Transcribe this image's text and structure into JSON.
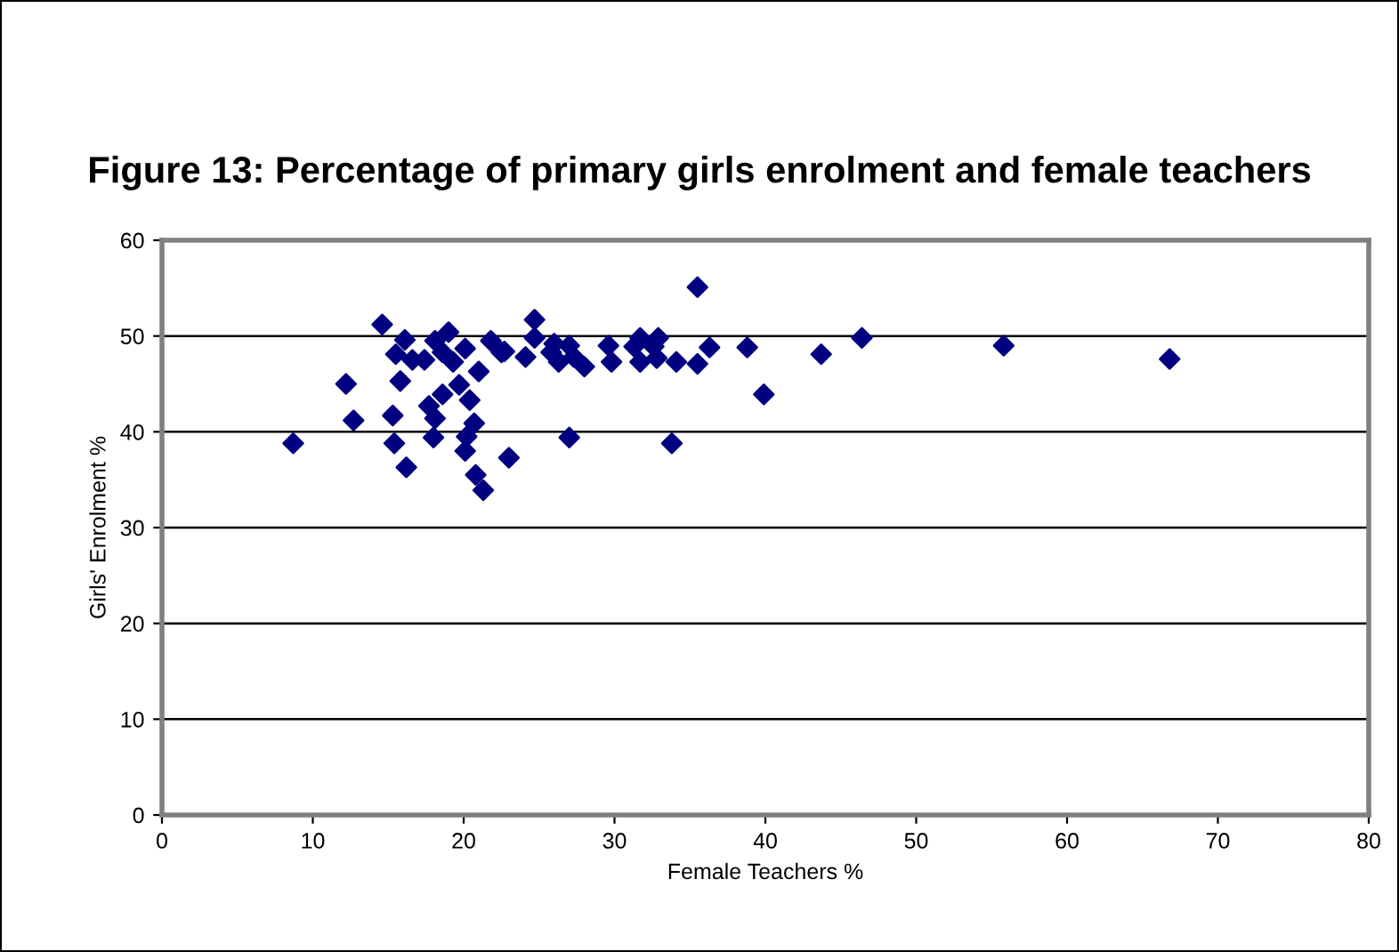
{
  "chart_data": {
    "type": "scatter",
    "title": "Figure 13: Percentage of primary girls enrolment and female teachers",
    "xlabel": "Female Teachers %",
    "ylabel": "Girls' Enrolment %",
    "xlim": [
      0,
      80
    ],
    "xticks": [
      0,
      10,
      20,
      30,
      40,
      50,
      60,
      70,
      80
    ],
    "ylim": [
      0,
      60
    ],
    "yticks": [
      0,
      10,
      20,
      30,
      40,
      50,
      60
    ],
    "grid": "y",
    "marker": "diamond",
    "legend": false,
    "series": [
      {
        "color": "#000080",
        "x": [
          14.6,
          16.1,
          15.5,
          16.6,
          17.4,
          18.1,
          19.0,
          18.6,
          19.3,
          20.1,
          21.8,
          22.5,
          21.0,
          19.7,
          18.6,
          20.4,
          17.7,
          18.1,
          20.7,
          20.2,
          18.0,
          20.1,
          20.8,
          21.3,
          12.2,
          12.7,
          8.7,
          15.3,
          15.4,
          16.2,
          15.8,
          35.5,
          24.7,
          24.7,
          22.7,
          24.1,
          26.0,
          25.8,
          27.0,
          26.3,
          27.3,
          28.0,
          29.6,
          29.8,
          31.7,
          31.3,
          32.9,
          32.6,
          31.7,
          32.8,
          34.1,
          35.5,
          36.3,
          38.8,
          39.9,
          43.7,
          46.4,
          27.0,
          33.8,
          23.0,
          55.8,
          66.8
        ],
        "values": [
          51.2,
          49.6,
          48.1,
          47.5,
          47.5,
          49.5,
          50.4,
          48.3,
          47.3,
          48.7,
          49.5,
          48.3,
          46.3,
          44.9,
          43.9,
          43.3,
          42.7,
          41.4,
          40.9,
          39.5,
          39.4,
          38.0,
          35.5,
          33.9,
          45.0,
          41.2,
          38.8,
          41.7,
          38.8,
          36.3,
          45.3,
          55.1,
          51.7,
          49.8,
          48.4,
          47.8,
          49.2,
          48.3,
          49.0,
          47.3,
          47.8,
          46.8,
          49.0,
          47.3,
          49.8,
          48.9,
          49.8,
          48.9,
          47.3,
          47.7,
          47.3,
          47.1,
          48.8,
          48.8,
          43.9,
          48.1,
          49.8,
          39.4,
          38.8,
          37.3,
          49.0,
          47.6
        ]
      }
    ]
  }
}
